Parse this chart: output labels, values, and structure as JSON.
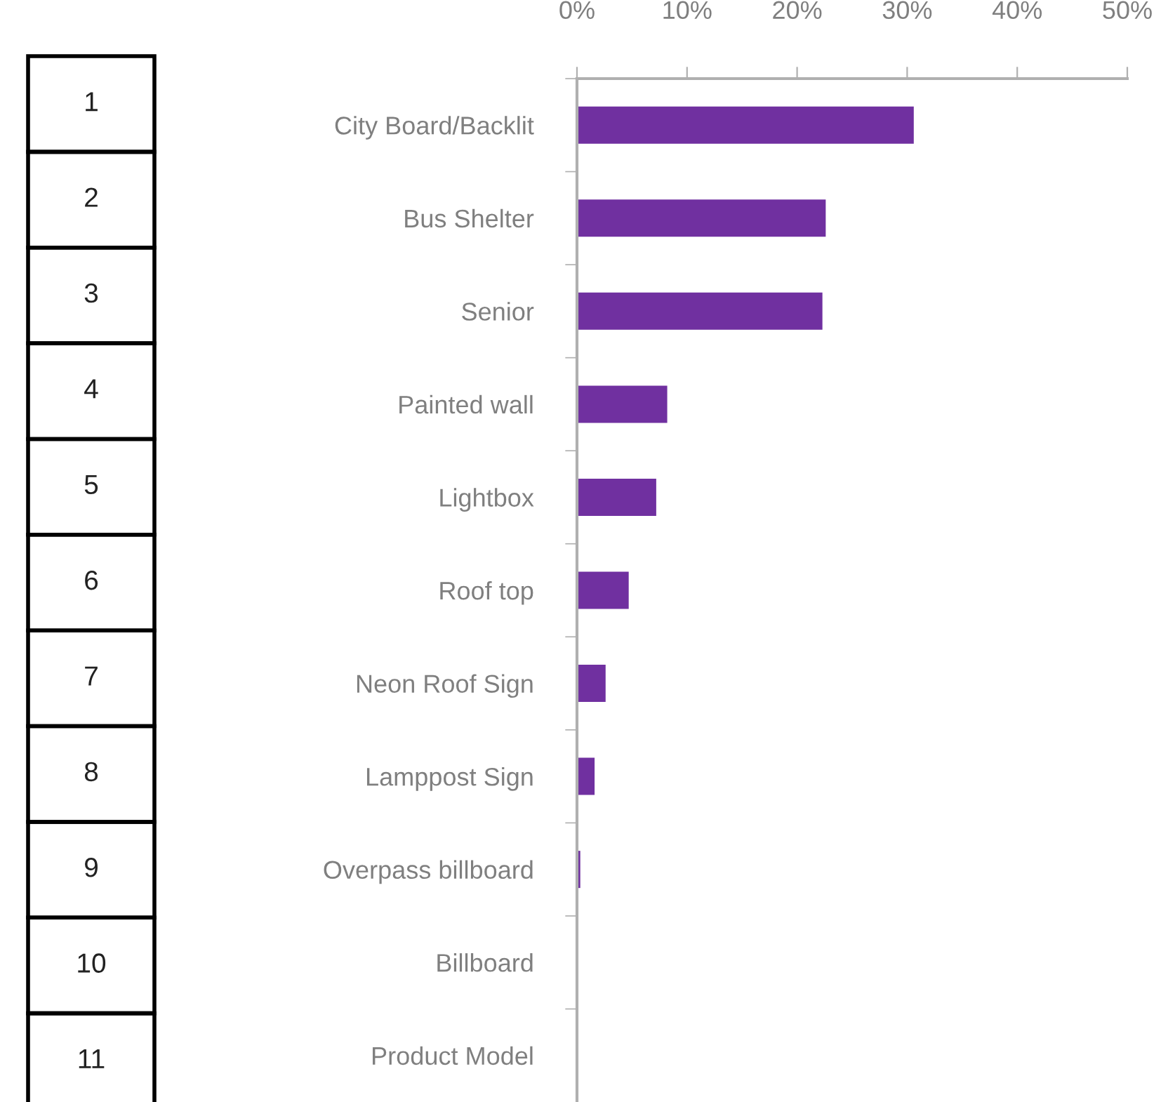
{
  "chart_data": {
    "type": "bar",
    "orientation": "horizontal",
    "categories": [
      "City Board/Backlit",
      "Bus Shelter",
      "Senior",
      "Painted wall",
      "Lightbox",
      "Roof top",
      "Neon Roof Sign",
      "Lamppost Sign",
      "Overpass billboard",
      "Billboard",
      "Product Model"
    ],
    "values": [
      30.6,
      22.6,
      22.3,
      8.2,
      7.2,
      4.7,
      2.6,
      1.6,
      0.3,
      0,
      0
    ],
    "color": "#7030a0",
    "xlim": [
      0,
      50
    ],
    "xticks": [
      {
        "value": 0,
        "label": "0%"
      },
      {
        "value": 10,
        "label": "10%"
      },
      {
        "value": 20,
        "label": "20%"
      },
      {
        "value": 30,
        "label": "30%"
      },
      {
        "value": 40,
        "label": "40%"
      },
      {
        "value": 50,
        "label": "50%"
      }
    ],
    "grid": false,
    "annotations": [
      "1",
      "2",
      "3",
      "4",
      "5",
      "6",
      "7",
      "8",
      "9",
      "10",
      "11"
    ]
  }
}
